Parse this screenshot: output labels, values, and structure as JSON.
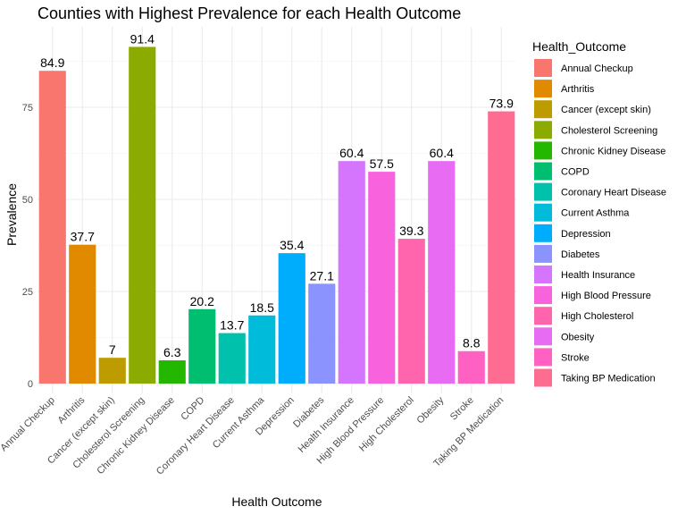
{
  "chart_data": {
    "type": "bar",
    "title": "Counties with Highest Prevalence for each Health Outcome",
    "xlabel": "Health Outcome",
    "ylabel": "Prevalence",
    "ylim": [
      0,
      95
    ],
    "yticks": [
      0,
      25,
      50,
      75
    ],
    "grid": true,
    "legend_title": "Health_Outcome",
    "legend_position": "right",
    "categories": [
      "Annual Checkup",
      "Arthritis",
      "Cancer (except skin)",
      "Cholesterol Screening",
      "Chronic Kidney Disease",
      "COPD",
      "Coronary Heart Disease",
      "Current Asthma",
      "Depression",
      "Diabetes",
      "Health Insurance",
      "High Blood Pressure",
      "High Cholesterol",
      "Obesity",
      "Stroke",
      "Taking BP Medication"
    ],
    "values": [
      84.9,
      37.7,
      7,
      91.4,
      6.3,
      20.2,
      13.7,
      18.5,
      35.4,
      27.1,
      60.4,
      57.5,
      39.3,
      60.4,
      8.8,
      73.9
    ],
    "value_labels": [
      "84.9",
      "37.7",
      "7",
      "91.4",
      "6.3",
      "20.2",
      "13.7",
      "18.5",
      "35.4",
      "27.1",
      "60.4",
      "57.5",
      "39.3",
      "60.4",
      "8.8",
      "73.9"
    ],
    "colors": [
      "#F8766D",
      "#E18A00",
      "#BE9C00",
      "#8CAB00",
      "#24B700",
      "#00BE70",
      "#00C1AB",
      "#00BBDA",
      "#00ACFC",
      "#8B93FF",
      "#D575FE",
      "#F962DD",
      "#FF65AC",
      "#E76BF3",
      "#FF61C3",
      "#FF6C91"
    ]
  }
}
